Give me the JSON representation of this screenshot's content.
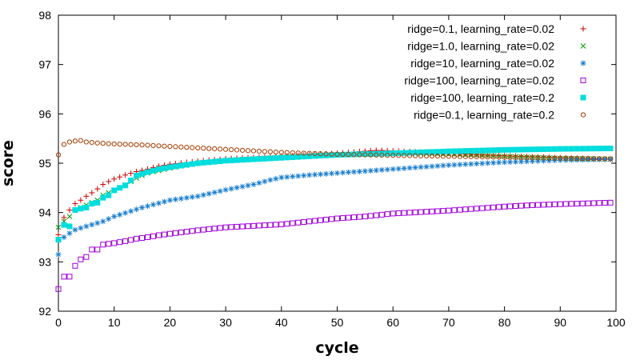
{
  "chart_data": {
    "type": "scatter",
    "title": "",
    "xlabel": "cycle",
    "ylabel": "score",
    "xlim": [
      0,
      100
    ],
    "ylim": [
      92,
      98
    ],
    "xticks": [
      0,
      10,
      20,
      30,
      40,
      50,
      60,
      70,
      80,
      90,
      100
    ],
    "yticks": [
      92,
      93,
      94,
      95,
      96,
      97,
      98
    ],
    "grid": false,
    "legend_position": "top-right",
    "series": [
      {
        "name": "ridge=0.1, learning_rate=0.02",
        "color": "#cc0000",
        "marker": "plus",
        "anchors": [
          [
            0,
            93.55
          ],
          [
            1,
            93.9
          ],
          [
            2,
            94.05
          ],
          [
            3,
            94.18
          ],
          [
            4,
            94.25
          ],
          [
            5,
            94.33
          ],
          [
            6,
            94.4
          ],
          [
            7,
            94.48
          ],
          [
            8,
            94.57
          ],
          [
            9,
            94.63
          ],
          [
            10,
            94.68
          ],
          [
            12,
            94.76
          ],
          [
            14,
            94.83
          ],
          [
            16,
            94.88
          ],
          [
            18,
            94.94
          ],
          [
            20,
            94.98
          ],
          [
            25,
            95.04
          ],
          [
            30,
            95.09
          ],
          [
            40,
            95.14
          ],
          [
            50,
            95.2
          ],
          [
            57,
            95.26
          ],
          [
            60,
            95.25
          ],
          [
            70,
            95.2
          ],
          [
            80,
            95.15
          ],
          [
            90,
            95.11
          ],
          [
            99,
            95.08
          ]
        ]
      },
      {
        "name": "ridge=1.0, learning_rate=0.02",
        "color": "#009900",
        "marker": "cross",
        "anchors": [
          [
            0,
            93.7
          ],
          [
            1,
            93.82
          ],
          [
            2,
            93.92
          ],
          [
            3,
            94.05
          ],
          [
            4,
            94.1
          ],
          [
            5,
            94.15
          ],
          [
            6,
            94.2
          ],
          [
            7,
            94.25
          ],
          [
            8,
            94.35
          ],
          [
            10,
            94.45
          ],
          [
            12,
            94.56
          ],
          [
            14,
            94.7
          ],
          [
            16,
            94.8
          ],
          [
            18,
            94.85
          ],
          [
            20,
            94.9
          ],
          [
            25,
            95.0
          ],
          [
            30,
            95.06
          ],
          [
            40,
            95.12
          ],
          [
            50,
            95.17
          ],
          [
            60,
            95.2
          ],
          [
            70,
            95.18
          ],
          [
            80,
            95.14
          ],
          [
            90,
            95.1
          ],
          [
            99,
            95.08
          ]
        ]
      },
      {
        "name": "ridge=10, learning_rate=0.02",
        "color": "#1a7ecc",
        "marker": "star",
        "anchors": [
          [
            0,
            93.15
          ],
          [
            1,
            93.5
          ],
          [
            2,
            93.58
          ],
          [
            3,
            93.65
          ],
          [
            5,
            93.72
          ],
          [
            8,
            93.82
          ],
          [
            10,
            93.92
          ],
          [
            15,
            94.1
          ],
          [
            20,
            94.25
          ],
          [
            25,
            94.33
          ],
          [
            30,
            94.46
          ],
          [
            35,
            94.57
          ],
          [
            38,
            94.66
          ],
          [
            40,
            94.71
          ],
          [
            45,
            94.76
          ],
          [
            50,
            94.8
          ],
          [
            55,
            94.84
          ],
          [
            60,
            94.88
          ],
          [
            65,
            94.92
          ],
          [
            70,
            94.96
          ],
          [
            75,
            94.99
          ],
          [
            80,
            95.02
          ],
          [
            85,
            95.04
          ],
          [
            90,
            95.06
          ],
          [
            99,
            95.08
          ]
        ]
      },
      {
        "name": "ridge=100, learning_rate=0.02",
        "color": "#a000d8",
        "marker": "square-open",
        "anchors": [
          [
            0,
            92.45
          ],
          [
            1,
            92.7
          ],
          [
            2,
            92.7
          ],
          [
            3,
            92.92
          ],
          [
            4,
            93.05
          ],
          [
            5,
            93.1
          ],
          [
            6,
            93.25
          ],
          [
            7,
            93.25
          ],
          [
            8,
            93.35
          ],
          [
            10,
            93.38
          ],
          [
            12,
            93.42
          ],
          [
            14,
            93.47
          ],
          [
            16,
            93.5
          ],
          [
            18,
            93.54
          ],
          [
            20,
            93.57
          ],
          [
            25,
            93.64
          ],
          [
            30,
            93.7
          ],
          [
            35,
            93.73
          ],
          [
            40,
            93.76
          ],
          [
            45,
            93.82
          ],
          [
            50,
            93.88
          ],
          [
            55,
            93.92
          ],
          [
            60,
            93.98
          ],
          [
            65,
            94.01
          ],
          [
            70,
            94.04
          ],
          [
            75,
            94.08
          ],
          [
            80,
            94.12
          ],
          [
            85,
            94.15
          ],
          [
            90,
            94.17
          ],
          [
            99,
            94.2
          ]
        ]
      },
      {
        "name": "ridge=100, learning_rate=0.2",
        "color": "#00dddd",
        "marker": "square-filled",
        "anchors": [
          [
            0,
            93.45
          ],
          [
            1,
            93.75
          ],
          [
            2,
            93.72
          ],
          [
            3,
            94.05
          ],
          [
            4,
            94.08
          ],
          [
            5,
            94.1
          ],
          [
            6,
            94.18
          ],
          [
            7,
            94.2
          ],
          [
            8,
            94.3
          ],
          [
            9,
            94.35
          ],
          [
            10,
            94.45
          ],
          [
            11,
            94.5
          ],
          [
            12,
            94.55
          ],
          [
            14,
            94.75
          ],
          [
            16,
            94.82
          ],
          [
            18,
            94.88
          ],
          [
            20,
            94.92
          ],
          [
            25,
            95.0
          ],
          [
            30,
            95.05
          ],
          [
            40,
            95.11
          ],
          [
            50,
            95.17
          ],
          [
            60,
            95.2
          ],
          [
            70,
            95.24
          ],
          [
            80,
            95.27
          ],
          [
            90,
            95.29
          ],
          [
            99,
            95.3
          ]
        ]
      },
      {
        "name": "ridge=0.1, learning_rate=0.2",
        "color": "#a23c00",
        "marker": "circle-open",
        "anchors": [
          [
            0,
            95.17
          ],
          [
            1,
            95.38
          ],
          [
            2,
            95.43
          ],
          [
            3,
            95.45
          ],
          [
            4,
            95.46
          ],
          [
            5,
            95.43
          ],
          [
            7,
            95.41
          ],
          [
            10,
            95.39
          ],
          [
            15,
            95.37
          ],
          [
            20,
            95.34
          ],
          [
            25,
            95.31
          ],
          [
            30,
            95.28
          ],
          [
            35,
            95.25
          ],
          [
            40,
            95.22
          ],
          [
            45,
            95.2
          ],
          [
            50,
            95.18
          ],
          [
            60,
            95.16
          ],
          [
            70,
            95.14
          ],
          [
            80,
            95.12
          ],
          [
            90,
            95.1
          ],
          [
            99,
            95.09
          ]
        ]
      }
    ]
  }
}
